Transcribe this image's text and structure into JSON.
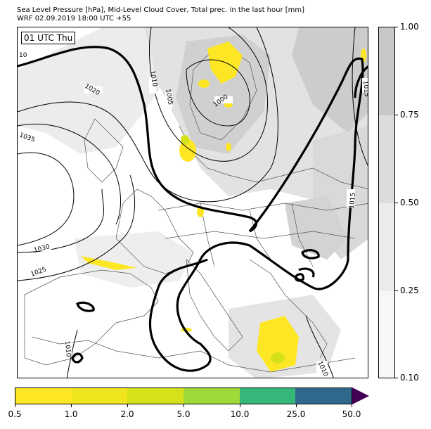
{
  "header": {
    "title_line1": "Sea Level Pressure [hPa], Mid-Level Cloud Cover, Total prec. in the last hour [mm]",
    "title_line2": "WRF 02.09.2019 18:00 UTC +55"
  },
  "map": {
    "time_label": "01 UTC Thu",
    "isobar_labels": [
      "10",
      "1010",
      "1005",
      "1000",
      "1020",
      "1035",
      "1030",
      "1025",
      "1015",
      "1015",
      "1010",
      "1010",
      "1015"
    ],
    "colors": {
      "land_border": "#555555",
      "isobar": "#000000",
      "cloud_light": "#e6e6e6",
      "cloud_mid": "#cfcfcf",
      "cloud_heavy": "#b8b8b8",
      "precip_light": "#fde725",
      "precip_mid": "#d5e21a"
    }
  },
  "cloud_colorbar": {
    "labels": [
      "1.00",
      "0.75",
      "0.50",
      "0.25",
      "0.10"
    ],
    "colors": [
      "#c8c8c8",
      "#dcdcdc",
      "#ebebeb",
      "#f7f7f7"
    ]
  },
  "precip_colorbar": {
    "labels": [
      "0.5",
      "1.0",
      "2.0",
      "5.0",
      "10.0",
      "25.0",
      "50.0"
    ],
    "colors": [
      "#fde725",
      "#f1e51d",
      "#d5e21a",
      "#a0da39",
      "#35b779",
      "#31688e",
      "#3b528b"
    ],
    "extend_color": "#440154"
  }
}
